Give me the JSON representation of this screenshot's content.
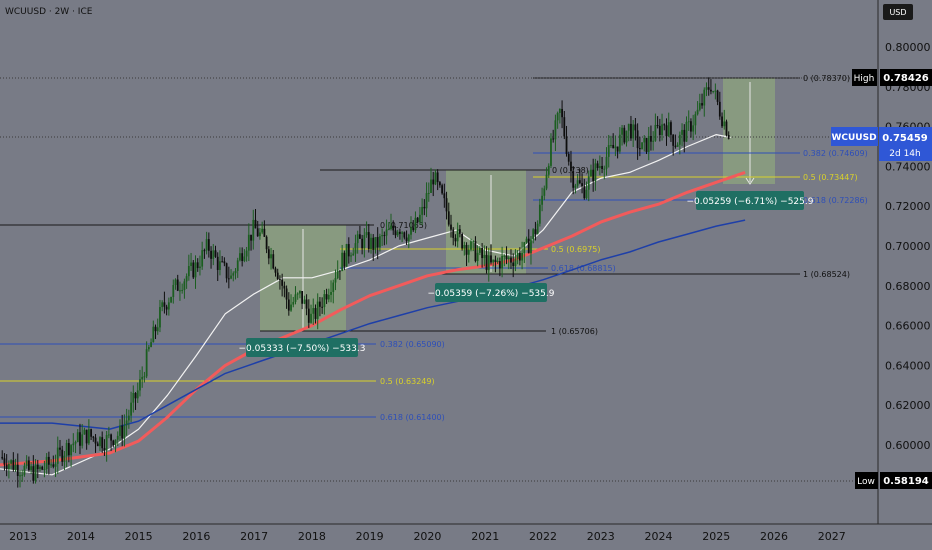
{
  "header": {
    "symbol_line": "WCUUSD · 2W · ICE"
  },
  "currency": "USD",
  "colors": {
    "background": "#787b86",
    "candle_up": "#1b5e20",
    "candle_down": "#0d0d0d",
    "ma_fast": "#f2f2f2",
    "ma_medium": "#f25b5b",
    "ma_slow": "#1e3fa8",
    "fib_blue": "#2e4fb8",
    "fib_yellow": "#d9d12a",
    "measure_fill": "#9cc07a",
    "measure_box": "#1f6f63",
    "last_price_tag": "#2f57d6",
    "label_high_low_bg": "#000000"
  },
  "price_axis": {
    "labels": [
      "0.80000",
      "0.78000",
      "0.76000",
      "0.74000",
      "0.72000",
      "0.70000",
      "0.68000",
      "0.66000",
      "0.64000",
      "0.62000",
      "0.60000"
    ],
    "high": {
      "label": "High",
      "value": "0.78426"
    },
    "low": {
      "label": "Low",
      "value": "0.58194"
    },
    "last": {
      "symbol": "WCUUSD",
      "value": "0.75459",
      "countdown": "2d 14h"
    }
  },
  "time_axis": [
    "2013",
    "2014",
    "2015",
    "2016",
    "2017",
    "2018",
    "2019",
    "2020",
    "2021",
    "2022",
    "2023",
    "2024",
    "2025",
    "2026",
    "2027"
  ],
  "fib_labels": [
    "0 (0.78370)",
    "0.382 (0.74609)",
    "0.5 (0.73447)",
    "0.618 (0.72286)",
    "1 (0.68524)",
    "0 (0.738)",
    "0.5 (0.6975)",
    "0.618 (0.68815)",
    "0 (0.71065)",
    "1 (0.65706)",
    "0.382 (0.65090)",
    "0.5 (0.63249)",
    "0.618 (0.61400)"
  ],
  "measurements": [
    "−0.05333 (−7.50%) −533.3",
    "−0.05359 (−7.26%) −535.9",
    "−0.05259 (−6.71%) −525.9"
  ],
  "chart_data": {
    "type": "line",
    "description_series": "candlestick price with three moving averages, fib retracements and measure boxes",
    "xlabel": "",
    "ylabel": "",
    "ylim": [
      0.576,
      0.81
    ],
    "xlim": [
      2012.6,
      2027.8
    ],
    "grid": false,
    "series": [
      {
        "key": "price_close",
        "x": [
          2012.6,
          2012.9,
          2013.2,
          2013.5,
          2013.8,
          2014.1,
          2014.4,
          2014.7,
          2015.0,
          2015.2,
          2015.4,
          2015.6,
          2015.8,
          2016.0,
          2016.2,
          2016.4,
          2016.6,
          2016.8,
          2017.0,
          2017.2,
          2017.4,
          2017.6,
          2017.8,
          2018.0,
          2018.1,
          2018.3,
          2018.5,
          2018.7,
          2018.9,
          2019.1,
          2019.3,
          2019.5,
          2019.7,
          2019.9,
          2020.1,
          2020.3,
          2020.5,
          2020.7,
          2020.9,
          2021.1,
          2021.3,
          2021.5,
          2021.7,
          2021.9,
          2022.1,
          2022.3,
          2022.5,
          2022.7,
          2022.9,
          2023.1,
          2023.3,
          2023.5,
          2023.7,
          2023.9,
          2024.1,
          2024.3,
          2024.5,
          2024.7,
          2024.9,
          2025.1,
          2025.25
        ],
        "values": [
          0.594,
          0.589,
          0.586,
          0.591,
          0.6,
          0.605,
          0.602,
          0.606,
          0.628,
          0.65,
          0.668,
          0.678,
          0.684,
          0.69,
          0.7,
          0.69,
          0.684,
          0.698,
          0.709,
          0.702,
          0.688,
          0.67,
          0.675,
          0.663,
          0.668,
          0.68,
          0.692,
          0.7,
          0.703,
          0.7,
          0.706,
          0.71,
          0.705,
          0.716,
          0.735,
          0.72,
          0.705,
          0.7,
          0.695,
          0.69,
          0.693,
          0.694,
          0.698,
          0.71,
          0.745,
          0.768,
          0.735,
          0.728,
          0.738,
          0.745,
          0.752,
          0.76,
          0.748,
          0.755,
          0.762,
          0.752,
          0.758,
          0.768,
          0.782,
          0.765,
          0.7546
        ]
      },
      {
        "key": "ma_fast",
        "x": [
          2012.6,
          2013.5,
          2014.5,
          2015.0,
          2015.5,
          2016.0,
          2016.5,
          2017.0,
          2017.5,
          2018.0,
          2018.5,
          2019.0,
          2019.5,
          2020.0,
          2020.5,
          2021.0,
          2021.5,
          2022.0,
          2022.5,
          2023.0,
          2023.5,
          2024.0,
          2024.5,
          2025.0,
          2025.25
        ],
        "values": [
          0.588,
          0.585,
          0.598,
          0.608,
          0.625,
          0.645,
          0.666,
          0.676,
          0.684,
          0.684,
          0.688,
          0.693,
          0.7,
          0.704,
          0.708,
          0.698,
          0.695,
          0.708,
          0.727,
          0.734,
          0.737,
          0.743,
          0.75,
          0.756,
          0.7545
        ]
      },
      {
        "key": "ma_medium",
        "x": [
          2012.6,
          2013.5,
          2014.5,
          2015.0,
          2015.5,
          2016.0,
          2016.5,
          2017.0,
          2017.5,
          2018.0,
          2018.5,
          2019.0,
          2019.5,
          2020.0,
          2020.5,
          2021.0,
          2021.5,
          2022.0,
          2022.5,
          2023.0,
          2023.5,
          2024.0,
          2024.5,
          2025.0,
          2025.5
        ],
        "values": [
          0.59,
          0.592,
          0.596,
          0.602,
          0.614,
          0.628,
          0.64,
          0.648,
          0.654,
          0.66,
          0.668,
          0.675,
          0.68,
          0.685,
          0.688,
          0.69,
          0.693,
          0.699,
          0.705,
          0.712,
          0.717,
          0.721,
          0.727,
          0.732,
          0.737
        ]
      },
      {
        "key": "ma_slow",
        "x": [
          2012.6,
          2013.5,
          2014.5,
          2015.0,
          2015.5,
          2016.0,
          2016.5,
          2017.0,
          2017.5,
          2018.0,
          2018.5,
          2019.0,
          2019.5,
          2020.0,
          2020.5,
          2021.0,
          2021.5,
          2022.0,
          2022.5,
          2023.0,
          2023.5,
          2024.0,
          2024.5,
          2025.0,
          2025.5
        ],
        "values": [
          0.611,
          0.611,
          0.608,
          0.612,
          0.62,
          0.628,
          0.636,
          0.641,
          0.646,
          0.651,
          0.656,
          0.661,
          0.665,
          0.669,
          0.672,
          0.675,
          0.679,
          0.683,
          0.688,
          0.693,
          0.697,
          0.702,
          0.706,
          0.71,
          0.713
        ]
      }
    ]
  }
}
